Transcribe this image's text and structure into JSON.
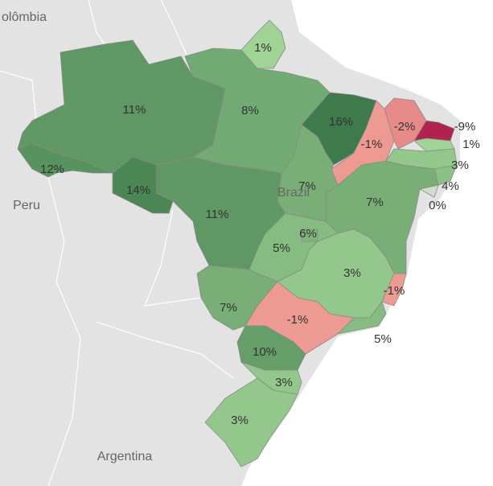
{
  "chart_data": {
    "type": "choropleth",
    "map_labels": [
      "olômbia",
      "Peru",
      "Argentina",
      "Brazil"
    ],
    "values": [
      12,
      11,
      8,
      1,
      16,
      -1,
      -2,
      -9,
      1,
      3,
      4,
      0,
      7,
      7,
      14,
      11,
      5,
      6,
      3,
      -1,
      7,
      -1,
      5,
      10,
      3,
      3
    ],
    "value_labels": [
      "12%",
      "11%",
      "8%",
      "1%",
      "16%",
      "-1%",
      "-2%",
      "-9%",
      "1%",
      "3%",
      "4%",
      "0%",
      "7%",
      "7%",
      "14%",
      "11%",
      "5%",
      "6%",
      "3%",
      "-1%",
      "7%",
      "-1%",
      "5%",
      "10%",
      "3%",
      "3%"
    ],
    "colors": {
      "negative": "#b0234f",
      "negative_light": "#f5a99a",
      "neutral": "#cfdfcb",
      "positive_light": "#a6d99a",
      "positive": "#3e7a4b"
    }
  }
}
